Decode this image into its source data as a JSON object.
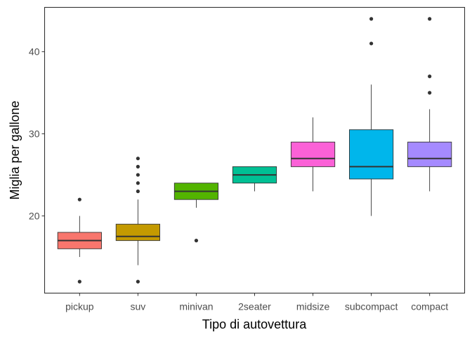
{
  "chart_data": {
    "type": "boxplot",
    "xlabel": "Tipo di autovettura",
    "ylabel": "Miglia per gallone",
    "ylim": [
      10.6,
      45.4
    ],
    "yticks": [
      20,
      30,
      40
    ],
    "grid": false,
    "legend": "none",
    "categories": [
      "pickup",
      "suv",
      "minivan",
      "2seater",
      "midsize",
      "subcompact",
      "compact"
    ],
    "boxes": [
      {
        "category": "pickup",
        "color": "#F8766D",
        "whisker_low": 15,
        "q1": 16,
        "median": 17,
        "q3": 18,
        "whisker_high": 20,
        "outliers": [
          12,
          22
        ]
      },
      {
        "category": "suv",
        "color": "#C49A00",
        "whisker_low": 14,
        "q1": 17,
        "median": 17.5,
        "q3": 19,
        "whisker_high": 22,
        "outliers": [
          12,
          23,
          24,
          25,
          26,
          27
        ]
      },
      {
        "category": "minivan",
        "color": "#53B400",
        "whisker_low": 21,
        "q1": 22,
        "median": 23,
        "q3": 24,
        "whisker_high": 24,
        "outliers": [
          17
        ]
      },
      {
        "category": "2seater",
        "color": "#00C094",
        "whisker_low": 23,
        "q1": 24,
        "median": 25,
        "q3": 26,
        "whisker_high": 26,
        "outliers": []
      },
      {
        "category": "midsize",
        "color": "#FB61D7",
        "whisker_low": 23,
        "q1": 26,
        "median": 27,
        "q3": 29,
        "whisker_high": 32,
        "outliers": []
      },
      {
        "category": "subcompact",
        "color": "#00B6EB",
        "whisker_low": 20,
        "q1": 24.5,
        "median": 26,
        "q3": 30.5,
        "whisker_high": 36,
        "outliers": [
          41,
          44
        ]
      },
      {
        "category": "compact",
        "color": "#A58AFF",
        "whisker_low": 23,
        "q1": 26,
        "median": 27,
        "q3": 29,
        "whisker_high": 33,
        "outliers": [
          35,
          37,
          44
        ]
      }
    ]
  }
}
